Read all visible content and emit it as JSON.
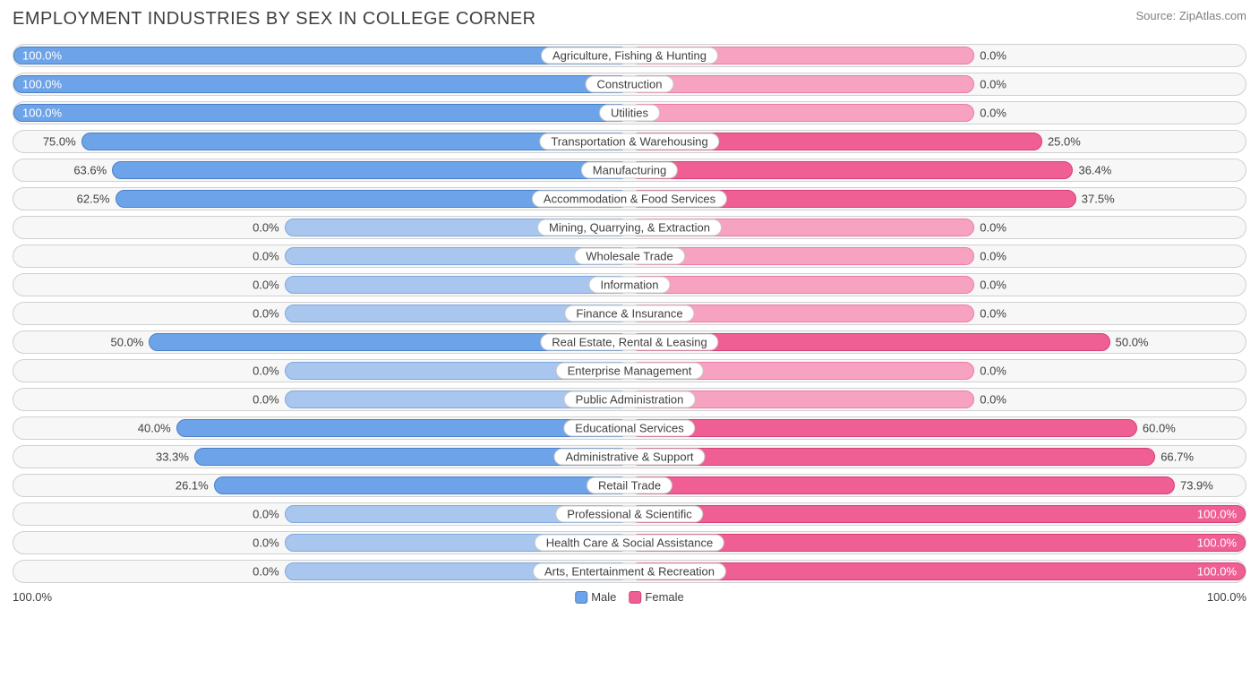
{
  "title": "EMPLOYMENT INDUSTRIES BY SEX IN COLLEGE CORNER",
  "source": "Source: ZipAtlas.com",
  "axis_label_left": "100.0%",
  "axis_label_right": "100.0%",
  "legend": {
    "male": "Male",
    "female": "Female"
  },
  "colors": {
    "male_fill": "#6da3e8",
    "male_border": "#4a7fc7",
    "male_light_fill": "#a9c6ee",
    "male_light_border": "#7ea8dd",
    "female_fill": "#ef5f94",
    "female_border": "#d63e77",
    "female_light_fill": "#f6a2c0",
    "female_light_border": "#ed7ba8",
    "track_bg": "#f7f7f7",
    "track_border": "#d0d0d0",
    "text": "#404040"
  },
  "min_bar_pct": 28,
  "chart": {
    "type": "diverging-bar",
    "categories": [
      {
        "label": "Agriculture, Fishing & Hunting",
        "male": 100.0,
        "female": 0.0
      },
      {
        "label": "Construction",
        "male": 100.0,
        "female": 0.0
      },
      {
        "label": "Utilities",
        "male": 100.0,
        "female": 0.0
      },
      {
        "label": "Transportation & Warehousing",
        "male": 75.0,
        "female": 25.0
      },
      {
        "label": "Manufacturing",
        "male": 63.6,
        "female": 36.4
      },
      {
        "label": "Accommodation & Food Services",
        "male": 62.5,
        "female": 37.5
      },
      {
        "label": "Mining, Quarrying, & Extraction",
        "male": 0.0,
        "female": 0.0
      },
      {
        "label": "Wholesale Trade",
        "male": 0.0,
        "female": 0.0
      },
      {
        "label": "Information",
        "male": 0.0,
        "female": 0.0
      },
      {
        "label": "Finance & Insurance",
        "male": 0.0,
        "female": 0.0
      },
      {
        "label": "Real Estate, Rental & Leasing",
        "male": 50.0,
        "female": 50.0
      },
      {
        "label": "Enterprise Management",
        "male": 0.0,
        "female": 0.0
      },
      {
        "label": "Public Administration",
        "male": 0.0,
        "female": 0.0
      },
      {
        "label": "Educational Services",
        "male": 40.0,
        "female": 60.0
      },
      {
        "label": "Administrative & Support",
        "male": 33.3,
        "female": 66.7
      },
      {
        "label": "Retail Trade",
        "male": 26.1,
        "female": 73.9
      },
      {
        "label": "Professional & Scientific",
        "male": 0.0,
        "female": 100.0
      },
      {
        "label": "Health Care & Social Assistance",
        "male": 0.0,
        "female": 100.0
      },
      {
        "label": "Arts, Entertainment & Recreation",
        "male": 0.0,
        "female": 100.0
      }
    ]
  }
}
